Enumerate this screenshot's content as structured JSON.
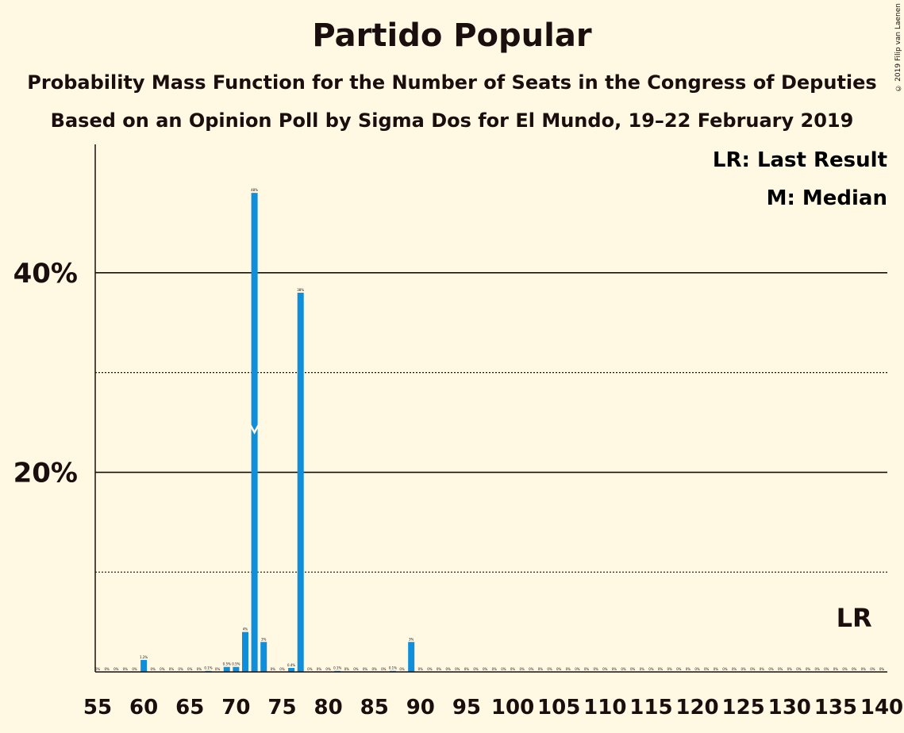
{
  "title": "Partido Popular",
  "subtitle1": "Probability Mass Function for the Number of Seats in the Congress of Deputies",
  "subtitle2": "Based on an Opinion Poll by Sigma Dos for El Mundo, 19–22 February 2019",
  "copyright": "© 2019 Filip van Laenen",
  "legend": {
    "lr": "LR: Last Result",
    "m": "M: Median"
  },
  "lr_label": "LR",
  "median_label": "M",
  "colors": {
    "bar": "#0F8FDB",
    "background": "#FFF8E2",
    "text": "#1a0e0e"
  },
  "chart_data": {
    "type": "bar",
    "x_range": [
      55,
      140
    ],
    "ylim": [
      0,
      50
    ],
    "y_ticks": [
      "20%",
      "40%"
    ],
    "x_ticks": [
      55,
      60,
      65,
      70,
      75,
      80,
      85,
      90,
      95,
      100,
      105,
      110,
      115,
      120,
      125,
      130,
      135,
      140
    ],
    "median_seat": 72,
    "last_result_seat": 137,
    "bars": [
      {
        "x": 55,
        "v": 0,
        "label": "0%"
      },
      {
        "x": 56,
        "v": 0,
        "label": "0%"
      },
      {
        "x": 57,
        "v": 0,
        "label": "0%"
      },
      {
        "x": 58,
        "v": 0,
        "label": "0%"
      },
      {
        "x": 59,
        "v": 0,
        "label": "0%"
      },
      {
        "x": 60,
        "v": 1.2,
        "label": "1.2%"
      },
      {
        "x": 61,
        "v": 0,
        "label": "0%"
      },
      {
        "x": 62,
        "v": 0,
        "label": "0%"
      },
      {
        "x": 63,
        "v": 0,
        "label": "0%"
      },
      {
        "x": 64,
        "v": 0,
        "label": "0%"
      },
      {
        "x": 65,
        "v": 0,
        "label": "0%"
      },
      {
        "x": 66,
        "v": 0,
        "label": "0%"
      },
      {
        "x": 67,
        "v": 0.1,
        "label": "0.1%"
      },
      {
        "x": 68,
        "v": 0,
        "label": "0%"
      },
      {
        "x": 69,
        "v": 0.5,
        "label": "0.5%"
      },
      {
        "x": 70,
        "v": 0.5,
        "label": "0.5%"
      },
      {
        "x": 71,
        "v": 4,
        "label": "4%"
      },
      {
        "x": 72,
        "v": 48,
        "label": "48%"
      },
      {
        "x": 73,
        "v": 3,
        "label": "3%"
      },
      {
        "x": 74,
        "v": 0,
        "label": "0%"
      },
      {
        "x": 75,
        "v": 0,
        "label": "0%"
      },
      {
        "x": 76,
        "v": 0.4,
        "label": "0.4%"
      },
      {
        "x": 77,
        "v": 38,
        "label": "38%"
      },
      {
        "x": 78,
        "v": 0,
        "label": "0%"
      },
      {
        "x": 79,
        "v": 0,
        "label": "0%"
      },
      {
        "x": 80,
        "v": 0,
        "label": "0%"
      },
      {
        "x": 81,
        "v": 0.1,
        "label": "0.1%"
      },
      {
        "x": 82,
        "v": 0,
        "label": "0%"
      },
      {
        "x": 83,
        "v": 0,
        "label": "0%"
      },
      {
        "x": 84,
        "v": 0,
        "label": "0%"
      },
      {
        "x": 85,
        "v": 0,
        "label": "0%"
      },
      {
        "x": 86,
        "v": 0,
        "label": "0%"
      },
      {
        "x": 87,
        "v": 0.1,
        "label": "0.1%"
      },
      {
        "x": 88,
        "v": 0,
        "label": "0%"
      },
      {
        "x": 89,
        "v": 3,
        "label": "3%"
      },
      {
        "x": 90,
        "v": 0,
        "label": "0%"
      },
      {
        "x": 91,
        "v": 0,
        "label": "0%"
      },
      {
        "x": 92,
        "v": 0,
        "label": "0%"
      },
      {
        "x": 93,
        "v": 0,
        "label": "0%"
      },
      {
        "x": 94,
        "v": 0,
        "label": "0%"
      },
      {
        "x": 95,
        "v": 0,
        "label": "0%"
      },
      {
        "x": 96,
        "v": 0,
        "label": "0%"
      },
      {
        "x": 97,
        "v": 0,
        "label": "0%"
      },
      {
        "x": 98,
        "v": 0,
        "label": "0%"
      },
      {
        "x": 99,
        "v": 0,
        "label": "0%"
      },
      {
        "x": 100,
        "v": 0,
        "label": "0%"
      },
      {
        "x": 101,
        "v": 0,
        "label": "0%"
      },
      {
        "x": 102,
        "v": 0,
        "label": "0%"
      },
      {
        "x": 103,
        "v": 0,
        "label": "0%"
      },
      {
        "x": 104,
        "v": 0,
        "label": "0%"
      },
      {
        "x": 105,
        "v": 0,
        "label": "0%"
      },
      {
        "x": 106,
        "v": 0,
        "label": "0%"
      },
      {
        "x": 107,
        "v": 0,
        "label": "0%"
      },
      {
        "x": 108,
        "v": 0,
        "label": "0%"
      },
      {
        "x": 109,
        "v": 0,
        "label": "0%"
      },
      {
        "x": 110,
        "v": 0,
        "label": "0%"
      },
      {
        "x": 111,
        "v": 0,
        "label": "0%"
      },
      {
        "x": 112,
        "v": 0,
        "label": "0%"
      },
      {
        "x": 113,
        "v": 0,
        "label": "0%"
      },
      {
        "x": 114,
        "v": 0,
        "label": "0%"
      },
      {
        "x": 115,
        "v": 0,
        "label": "0%"
      },
      {
        "x": 116,
        "v": 0,
        "label": "0%"
      },
      {
        "x": 117,
        "v": 0,
        "label": "0%"
      },
      {
        "x": 118,
        "v": 0,
        "label": "0%"
      },
      {
        "x": 119,
        "v": 0,
        "label": "0%"
      },
      {
        "x": 120,
        "v": 0,
        "label": "0%"
      },
      {
        "x": 121,
        "v": 0,
        "label": "0%"
      },
      {
        "x": 122,
        "v": 0,
        "label": "0%"
      },
      {
        "x": 123,
        "v": 0,
        "label": "0%"
      },
      {
        "x": 124,
        "v": 0,
        "label": "0%"
      },
      {
        "x": 125,
        "v": 0,
        "label": "0%"
      },
      {
        "x": 126,
        "v": 0,
        "label": "0%"
      },
      {
        "x": 127,
        "v": 0,
        "label": "0%"
      },
      {
        "x": 128,
        "v": 0,
        "label": "0%"
      },
      {
        "x": 129,
        "v": 0,
        "label": "0%"
      },
      {
        "x": 130,
        "v": 0,
        "label": "0%"
      },
      {
        "x": 131,
        "v": 0,
        "label": "0%"
      },
      {
        "x": 132,
        "v": 0,
        "label": "0%"
      },
      {
        "x": 133,
        "v": 0,
        "label": "0%"
      },
      {
        "x": 134,
        "v": 0,
        "label": "0%"
      },
      {
        "x": 135,
        "v": 0,
        "label": "0%"
      },
      {
        "x": 136,
        "v": 0,
        "label": "0%"
      },
      {
        "x": 137,
        "v": 0,
        "label": "0%"
      },
      {
        "x": 138,
        "v": 0,
        "label": "0%"
      },
      {
        "x": 139,
        "v": 0,
        "label": "0%"
      },
      {
        "x": 140,
        "v": 0,
        "label": "0%"
      }
    ]
  }
}
